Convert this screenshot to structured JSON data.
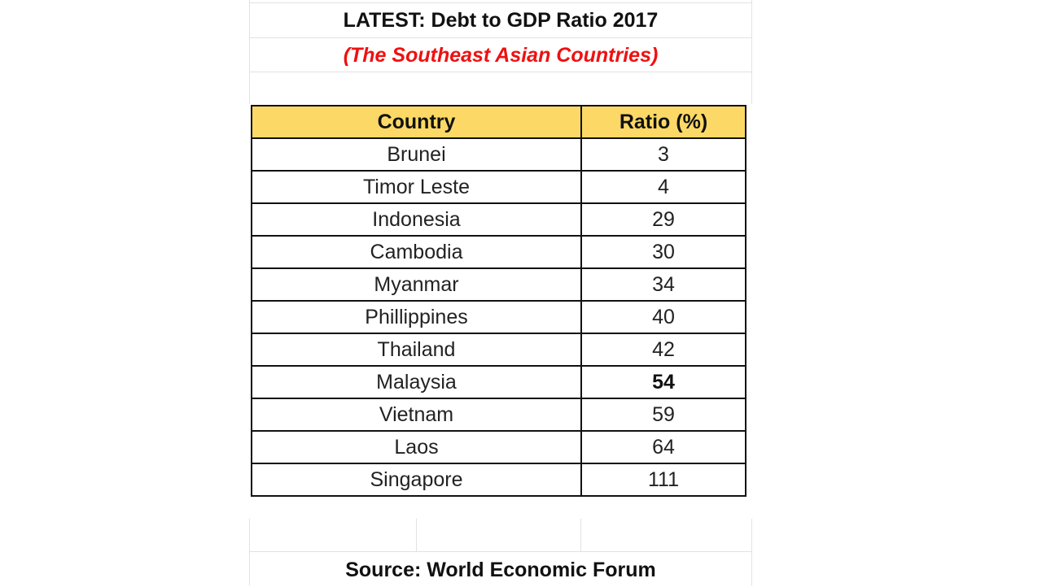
{
  "title": "LATEST: Debt to GDP Ratio 2017",
  "subtitle": "(The Southeast Asian Countries)",
  "table": {
    "headers": [
      "Country",
      "Ratio (%)"
    ],
    "rows": [
      {
        "country": "Brunei",
        "ratio": "3"
      },
      {
        "country": "Timor Leste",
        "ratio": "4"
      },
      {
        "country": "Indonesia",
        "ratio": "29"
      },
      {
        "country": "Cambodia",
        "ratio": "30"
      },
      {
        "country": "Myanmar",
        "ratio": "34"
      },
      {
        "country": "Phillippines",
        "ratio": "40"
      },
      {
        "country": "Thailand",
        "ratio": "42"
      },
      {
        "country": "Malaysia",
        "ratio": "54"
      },
      {
        "country": "Vietnam",
        "ratio": "59"
      },
      {
        "country": "Laos",
        "ratio": "64"
      },
      {
        "country": "Singapore",
        "ratio": "111"
      }
    ],
    "emphasized_ratio_row": 7
  },
  "source": "Source: World Economic Forum",
  "colors": {
    "header_fill": "#fcd966",
    "subtitle": "#ee1111",
    "gridline": "#e2e2e2"
  }
}
